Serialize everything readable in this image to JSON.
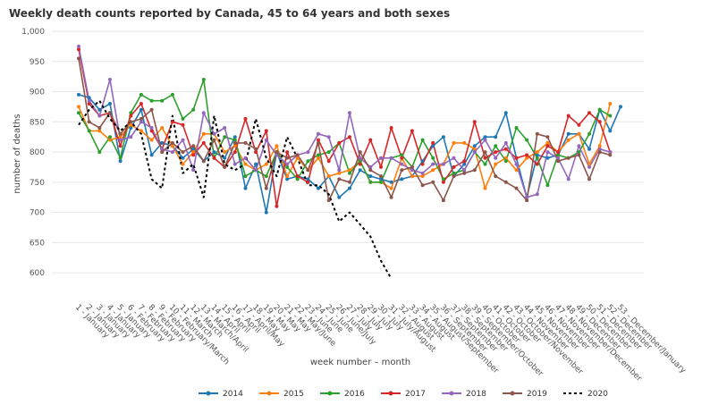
{
  "chart_data": {
    "type": "line",
    "title": "Weekly death counts reported by Canada, 45 to 64 years and both sexes",
    "xlabel": "week number – month",
    "ylabel": "number of deaths",
    "ylim": [
      575,
      1000
    ],
    "yticks": [
      "600",
      "650",
      "700",
      "750",
      "800",
      "850",
      "900",
      "950",
      "1,000"
    ],
    "ytick_values": [
      600,
      650,
      700,
      750,
      800,
      850,
      900,
      950,
      1000
    ],
    "grid": true,
    "legend_position": "bottom",
    "categories": [
      "1 - January",
      "2 - January",
      "3 - January",
      "4 - January",
      "5 - January",
      "6 - February",
      "7 - February",
      "8 - February",
      "9 - February",
      "10 - February/March",
      "11 - March",
      "12 - March",
      "13 - March/April",
      "14 - April",
      "15 - April",
      "16 - April",
      "17 - April/May",
      "18 - May",
      "19 - May",
      "20 - May",
      "21 - May",
      "22 - May/June",
      "23 - June",
      "24 - June",
      "25 - June",
      "26 - June/July",
      "27 - July",
      "28 - July",
      "29 - July",
      "30 - July",
      "31 - July/August",
      "32 - August",
      "33 - August",
      "34 - August",
      "35 - August/September",
      "36 - September",
      "37 - September",
      "38 - September",
      "39 - September/October",
      "40 - October",
      "41 - October",
      "42 - October",
      "43 - October/November",
      "44 - November",
      "45 - November",
      "46 - November",
      "47 - November",
      "48 - November/December",
      "49 - December",
      "50 - December",
      "51 - December",
      "52 - December",
      "53 - December/January"
    ],
    "series": [
      {
        "name": "2014",
        "color": "#1f77b4",
        "dash": false,
        "values": [
          895,
          890,
          870,
          880,
          785,
          840,
          870,
          795,
          815,
          810,
          790,
          805,
          785,
          800,
          790,
          825,
          740,
          780,
          700,
          800,
          755,
          760,
          755,
          740,
          760,
          725,
          740,
          770,
          760,
          755,
          750,
          755,
          760,
          785,
          810,
          825,
          760,
          780,
          810,
          825,
          825,
          865,
          790,
          725,
          795,
          790,
          795,
          830,
          830,
          805,
          870,
          835,
          875
        ]
      },
      {
        "name": "2015",
        "color": "#ff7f0e",
        "dash": false,
        "values": [
          875,
          835,
          835,
          820,
          825,
          845,
          835,
          820,
          840,
          810,
          780,
          800,
          830,
          830,
          800,
          810,
          780,
          770,
          780,
          810,
          760,
          790,
          770,
          790,
          760,
          765,
          770,
          785,
          750,
          750,
          740,
          790,
          760,
          760,
          770,
          780,
          815,
          815,
          805,
          740,
          780,
          790,
          770,
          790,
          800,
          815,
          800,
          820,
          830,
          780,
          810,
          880,
          null
        ]
      },
      {
        "name": "2016",
        "color": "#2ca02c",
        "dash": false,
        "values": [
          865,
          835,
          800,
          825,
          790,
          865,
          895,
          885,
          885,
          895,
          855,
          870,
          920,
          790,
          825,
          820,
          760,
          770,
          760,
          800,
          775,
          755,
          785,
          795,
          800,
          815,
          765,
          785,
          750,
          750,
          790,
          795,
          775,
          820,
          790,
          755,
          765,
          770,
          800,
          780,
          810,
          785,
          840,
          820,
          790,
          745,
          795,
          790,
          800,
          830,
          870,
          860,
          null
        ]
      },
      {
        "name": "2017",
        "color": "#d62728",
        "dash": false,
        "values": [
          970,
          880,
          860,
          865,
          810,
          860,
          880,
          835,
          805,
          850,
          845,
          795,
          815,
          790,
          775,
          800,
          855,
          800,
          835,
          710,
          800,
          760,
          750,
          820,
          785,
          815,
          825,
          780,
          820,
          775,
          840,
          790,
          835,
          780,
          815,
          750,
          775,
          785,
          850,
          790,
          800,
          805,
          790,
          795,
          780,
          810,
          800,
          860,
          845,
          865,
          850,
          800,
          null
        ]
      },
      {
        "name": "2018",
        "color": "#9467bd",
        "dash": false,
        "values": [
          975,
          885,
          860,
          920,
          820,
          825,
          850,
          840,
          805,
          800,
          820,
          770,
          865,
          830,
          840,
          780,
          790,
          770,
          820,
          795,
          780,
          795,
          800,
          830,
          825,
          770,
          865,
          790,
          775,
          790,
          790,
          780,
          770,
          765,
          780,
          780,
          790,
          770,
          800,
          820,
          790,
          815,
          780,
          725,
          730,
          800,
          790,
          755,
          810,
          775,
          805,
          800,
          null
        ]
      },
      {
        "name": "2019",
        "color": "#8c564b",
        "dash": false,
        "values": [
          955,
          850,
          840,
          865,
          830,
          850,
          855,
          870,
          800,
          815,
          800,
          810,
          785,
          820,
          775,
          815,
          815,
          805,
          740,
          800,
          790,
          795,
          770,
          815,
          720,
          755,
          750,
          800,
          770,
          760,
          725,
          770,
          775,
          745,
          750,
          720,
          760,
          765,
          770,
          800,
          760,
          750,
          740,
          720,
          830,
          825,
          785,
          790,
          795,
          755,
          800,
          795,
          null
        ]
      },
      {
        "name": "2020",
        "color": "#000000",
        "dash": true,
        "values": [
          845,
          870,
          885,
          855,
          835,
          850,
          830,
          755,
          740,
          860,
          765,
          780,
          725,
          860,
          780,
          770,
          780,
          855,
          790,
          760,
          825,
          790,
          745,
          745,
          730,
          685,
          700,
          680,
          660,
          620,
          590,
          null,
          null,
          null,
          null,
          null,
          null,
          null,
          null,
          null,
          null,
          null,
          null,
          null,
          null,
          null,
          null,
          null,
          null,
          null,
          null,
          null,
          null
        ]
      }
    ]
  }
}
